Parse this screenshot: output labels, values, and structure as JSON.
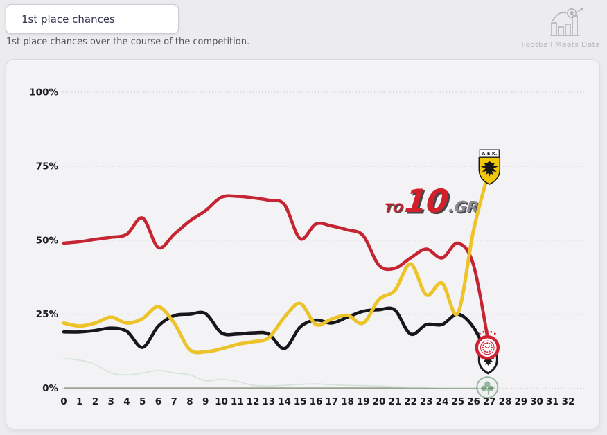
{
  "header": {
    "title_button": "1st place chances",
    "subtitle": "1st place chances over the course of the competition.",
    "brand_label": "Football Meets Data"
  },
  "watermark": {
    "prefix": "TO",
    "number": "10",
    "suffix": ".GR"
  },
  "chart_data": {
    "type": "line",
    "title": "1st place chances",
    "xlabel": "",
    "ylabel": "",
    "xlim": [
      0,
      32
    ],
    "ylim": [
      0,
      100
    ],
    "grid": "dotted horizontal gridlines at 0/25/50/75/100",
    "legend_position": "none (club crests mark line endpoints at round 27)",
    "rounds_played": 27,
    "x_ticks": [
      "0",
      "1",
      "2",
      "3",
      "4",
      "5",
      "6",
      "7",
      "8",
      "9",
      "10",
      "11",
      "12",
      "13",
      "14",
      "15",
      "16",
      "17",
      "18",
      "19",
      "20",
      "21",
      "22",
      "23",
      "24",
      "25",
      "26",
      "27",
      "28",
      "29",
      "30",
      "31",
      "32"
    ],
    "y_ticks": [
      "100%",
      "75%",
      "50%",
      "25%",
      "0%"
    ],
    "y_tick_values": [
      100,
      75,
      50,
      25,
      0
    ],
    "series": [
      {
        "name": "Panathinaikos",
        "logo": "panathinaikos",
        "color": "#d7e4db",
        "line_width": 1.8,
        "values": [
          10,
          9.5,
          8,
          5.2,
          4.5,
          5.2,
          6,
          5.2,
          4.5,
          2.5,
          3,
          2.3,
          1,
          0.8,
          1,
          1.3,
          1.5,
          1.2,
          1,
          0.9,
          0.8,
          0.5,
          0.4,
          0.4,
          0.3,
          0.3,
          0.3,
          0.3
        ]
      },
      {
        "name": "PAOK",
        "logo": "paok",
        "color": "#17171b",
        "line_width": 4.6,
        "values": [
          19,
          19,
          19.5,
          20.3,
          19.2,
          13.8,
          21,
          24.5,
          25,
          25.2,
          18.7,
          18.3,
          18.7,
          18.3,
          13.4,
          20.7,
          23,
          22,
          24,
          26,
          26.5,
          26.4,
          18.3,
          21.5,
          21.5,
          25,
          20.5,
          10
        ]
      },
      {
        "name": "Olympiacos",
        "logo": "olympiacos",
        "color": "#c52532",
        "line_width": 4.6,
        "values": [
          49,
          49.5,
          50.3,
          51,
          52,
          57.5,
          47.5,
          52,
          56.5,
          60,
          64.5,
          64.8,
          64.3,
          63.5,
          62,
          50.5,
          55.5,
          54.8,
          53.5,
          51.5,
          41.5,
          40.5,
          44,
          47,
          44,
          49,
          41.5,
          13.5
        ]
      },
      {
        "name": "AEK",
        "logo": "aek",
        "color": "#edc32a",
        "line_width": 5,
        "values": [
          22,
          21,
          22,
          24,
          22,
          23.5,
          27.5,
          22,
          13,
          12.3,
          13.3,
          14.8,
          15.7,
          17,
          24,
          28.6,
          21.5,
          23.4,
          24.6,
          22,
          30,
          33,
          42,
          31.5,
          35.5,
          25.4,
          53.5,
          74
        ]
      }
    ],
    "aek_banner_text": "A.E.K."
  }
}
